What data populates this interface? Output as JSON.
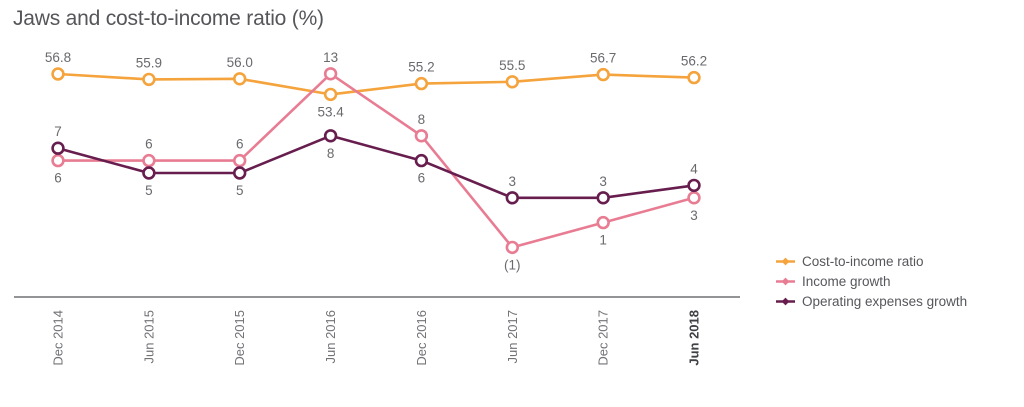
{
  "chart_data": {
    "type": "line",
    "title": "Jaws and cost-to-income ratio (%)",
    "categories": [
      "Dec 2014",
      "Jun 2015",
      "Dec 2015",
      "Jun 2016",
      "Dec 2016",
      "Jun 2017",
      "Dec 2017",
      "Jun 2018"
    ],
    "x_axis": {
      "bold_category": "Jun 2018",
      "tick_rotation_degrees": -90
    },
    "series": [
      {
        "name": "Cost-to-income ratio",
        "color": "#F5A33C",
        "axis": "percent",
        "values": [
          56.8,
          55.9,
          56.0,
          53.4,
          55.2,
          55.5,
          56.7,
          56.2
        ],
        "labels": [
          "56.8",
          "55.9",
          "56.0",
          "53.4",
          "55.2",
          "55.5",
          "56.7",
          "56.2"
        ],
        "label_side": [
          "above",
          "above",
          "above",
          "below",
          "above",
          "above",
          "above",
          "above"
        ]
      },
      {
        "name": "Income growth",
        "color": "#E87C93",
        "axis": "growth",
        "values": [
          6,
          6,
          6,
          13,
          8,
          -1,
          1,
          3
        ],
        "labels": [
          "6",
          "6",
          "6",
          "13",
          "8",
          "(1)",
          "1",
          "3"
        ],
        "label_side": [
          "below",
          "above",
          "above",
          "above",
          "above",
          "below",
          "below",
          "below"
        ]
      },
      {
        "name": "Operating expenses growth",
        "color": "#671E4E",
        "axis": "growth",
        "values": [
          7,
          5,
          5,
          8,
          6,
          3,
          3,
          4
        ],
        "labels": [
          "7",
          "5",
          "5",
          "8",
          "6",
          "3",
          "3",
          "4"
        ],
        "label_side": [
          "above",
          "below",
          "below",
          "below",
          "below",
          "above",
          "above",
          "above"
        ]
      }
    ],
    "legend": {
      "position": "right"
    },
    "axis_ranges": {
      "percent_visible": [
        53.4,
        56.8
      ],
      "growth_visible": [
        -1,
        13
      ]
    },
    "grid": "off",
    "marker_style": "open-circle"
  }
}
